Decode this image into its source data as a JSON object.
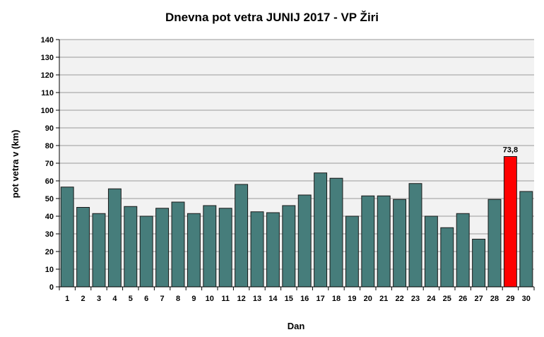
{
  "chart_data": {
    "type": "bar",
    "title": "Dnevna pot vetra JUNIJ 2017 - VP Žiri",
    "xlabel": "Dan",
    "ylabel": "pot vetra  v (km)",
    "ylim": [
      0,
      140
    ],
    "yticks": [
      0,
      10,
      20,
      30,
      40,
      50,
      60,
      70,
      80,
      90,
      100,
      110,
      120,
      130,
      140
    ],
    "grid": true,
    "legend": "none",
    "categories": [
      "1",
      "2",
      "3",
      "4",
      "5",
      "6",
      "7",
      "8",
      "9",
      "10",
      "11",
      "12",
      "13",
      "14",
      "15",
      "16",
      "17",
      "18",
      "19",
      "20",
      "21",
      "22",
      "23",
      "24",
      "25",
      "26",
      "27",
      "28",
      "29",
      "30"
    ],
    "series": [
      {
        "values": [
          56.5,
          45,
          41.5,
          55.5,
          45.5,
          40,
          44.5,
          48,
          41.5,
          46,
          44.5,
          58,
          42.5,
          42,
          46,
          52,
          64.5,
          61.5,
          40,
          51.5,
          51.5,
          49.5,
          58.5,
          40,
          33.5,
          41.5,
          27,
          49.5,
          73.8,
          54
        ]
      }
    ],
    "highlight": {
      "category": "29",
      "value": 73.8,
      "label": "73,8",
      "color": "#ff0000"
    },
    "bar_color": "#467d7b",
    "bar_edge_color": "#1a1a1a",
    "plot_background": "#f2f2f2",
    "grid_color": "#9a9a9a"
  }
}
